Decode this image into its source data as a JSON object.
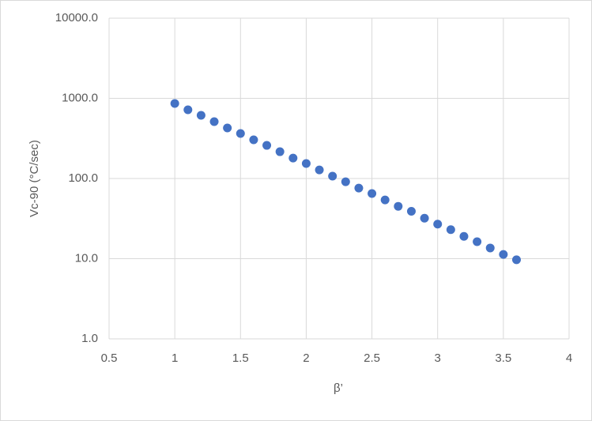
{
  "chart_data": {
    "type": "scatter",
    "x_label": "β’",
    "y_label": "Vc-90 (°C/sec)",
    "series": [
      {
        "color": "#4472c4",
        "x": [
          1.0,
          1.1,
          1.2,
          1.3,
          1.4,
          1.5,
          1.6,
          1.7,
          1.8,
          1.9,
          2.0,
          2.1,
          2.2,
          2.3,
          2.4,
          2.5,
          2.6,
          2.7,
          2.8,
          2.9,
          3.0,
          3.1,
          3.2,
          3.3,
          3.4,
          3.5,
          3.6
        ],
        "values": [
          863,
          720,
          614,
          512,
          427,
          364,
          304,
          259,
          216,
          180,
          154,
          128,
          107,
          91,
          76,
          65,
          54,
          45,
          39,
          32,
          27,
          23,
          19,
          16.3,
          13.6,
          11.3,
          9.7
        ]
      }
    ],
    "xlim": [
      0.5,
      4
    ],
    "xticks": [
      0.5,
      1,
      1.5,
      2,
      2.5,
      3,
      3.5,
      4
    ],
    "ylim": [
      1,
      10000
    ],
    "ylog": true,
    "yticks": [
      {
        "value": 1,
        "label": "1.0"
      },
      {
        "value": 10,
        "label": "10.0"
      },
      {
        "value": 100,
        "label": "100.0"
      },
      {
        "value": 1000,
        "label": "1000.0"
      },
      {
        "value": 10000,
        "label": "10000.0"
      }
    ],
    "grid": true
  }
}
